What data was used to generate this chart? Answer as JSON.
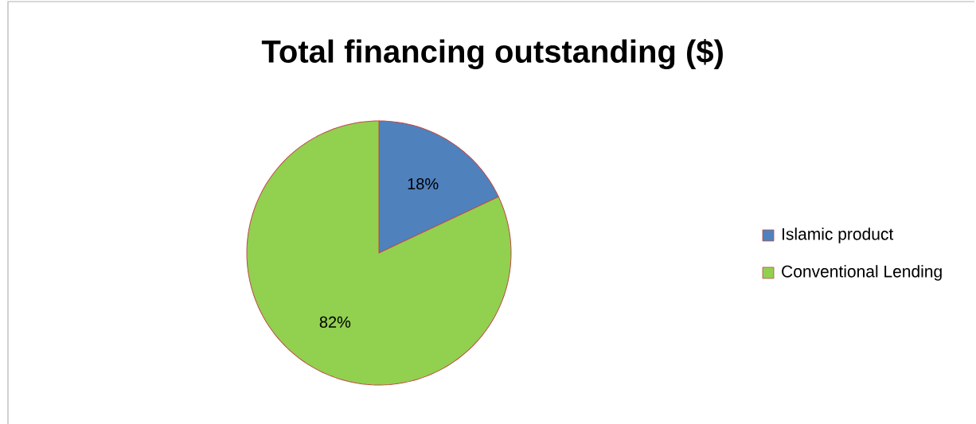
{
  "chart_data": {
    "type": "pie",
    "title": "Total financing outstanding ($)",
    "categories": [
      "Islamic product",
      "Conventional Lending"
    ],
    "values": [
      18,
      82
    ],
    "value_labels": [
      "18%",
      "82%"
    ],
    "colors": [
      "#4f81bd",
      "#92d050"
    ],
    "legend": "right"
  }
}
